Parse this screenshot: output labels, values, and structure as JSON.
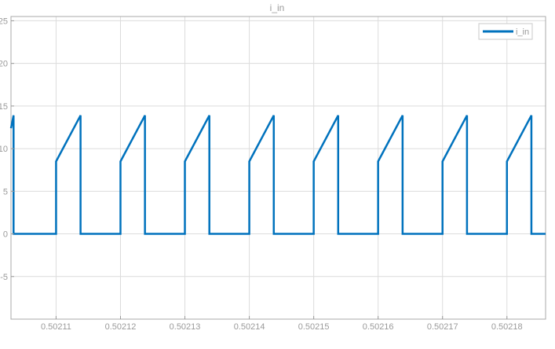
{
  "chart_data": {
    "type": "line",
    "title": "i_in",
    "xlabel": "",
    "ylabel": "",
    "xlim": [
      0.502103,
      0.502186
    ],
    "ylim": [
      -10,
      25.5
    ],
    "xticks": [
      0.50211,
      0.50212,
      0.50213,
      0.50214,
      0.50215,
      0.50216,
      0.50217,
      0.50218
    ],
    "xtick_labels": [
      "0.50211",
      "0.50212",
      "0.50213",
      "0.50214",
      "0.50215",
      "0.50216",
      "0.50217",
      "0.50218"
    ],
    "yticks": [
      -5,
      0,
      5,
      10,
      15,
      20,
      25
    ],
    "ytick_labels": [
      "-5",
      "0",
      "5",
      "10",
      "15",
      "20",
      "25"
    ],
    "grid": true,
    "legend_position": "top-right",
    "waveform": {
      "period": 1e-05,
      "first_rise": 0.50211,
      "on_duration": 3.8e-06,
      "low_level": 0,
      "start_level": 8.5,
      "peak_level": 13.9
    },
    "series": [
      {
        "name": "i_in",
        "color": "#0072BD",
        "x": [
          0.502103,
          0.5021034,
          0.5021034,
          0.50211,
          0.50211,
          0.5021138,
          0.5021138,
          0.50212,
          0.50212,
          0.5021238,
          0.5021238,
          0.50213,
          0.50213,
          0.5021338,
          0.5021338,
          0.50214,
          0.50214,
          0.5021438,
          0.5021438,
          0.50215,
          0.50215,
          0.5021538,
          0.5021538,
          0.50216,
          0.50216,
          0.5021638,
          0.5021638,
          0.50217,
          0.50217,
          0.5021738,
          0.5021738,
          0.50218,
          0.50218,
          0.5021838,
          0.5021838,
          0.502186
        ],
        "y": [
          12.4,
          13.9,
          0,
          0,
          8.5,
          13.9,
          0,
          0,
          8.5,
          13.9,
          0,
          0,
          8.5,
          13.9,
          0,
          0,
          8.5,
          13.9,
          0,
          0,
          8.5,
          13.9,
          0,
          0,
          8.5,
          13.9,
          0,
          0,
          8.5,
          13.9,
          0,
          0,
          8.5,
          13.9,
          0,
          0
        ]
      }
    ]
  }
}
